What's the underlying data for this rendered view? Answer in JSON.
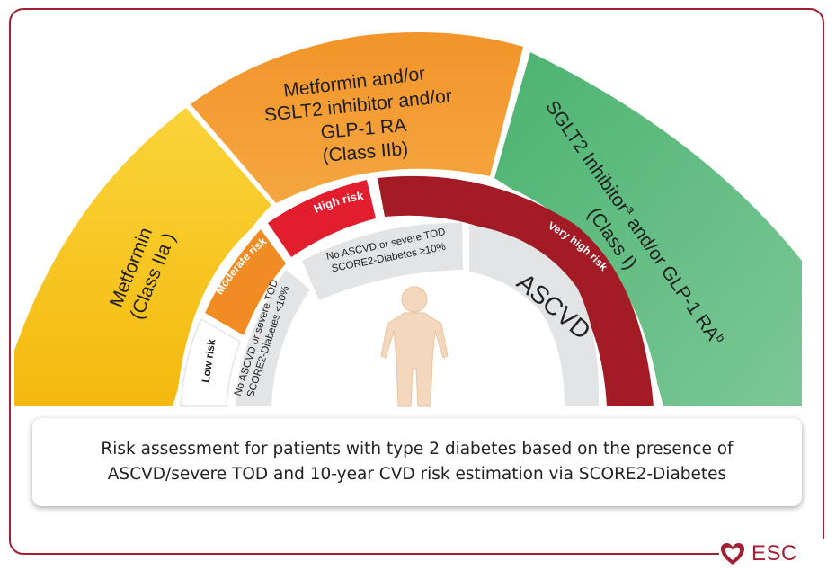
{
  "segments": {
    "class_iia": {
      "line1": "Metformin",
      "line2": "(Class IIa )",
      "color": "#f6c21c"
    },
    "class_iib": {
      "line1": "Metformin and/or",
      "line2": "SGLT2 inhibitor and/or",
      "line3": "GLP-1 RA",
      "line4": "(Class IIb)",
      "color": "#f39a2c"
    },
    "class_i": {
      "line1_main": "SGLT2 Inhibitor",
      "line1_sup": "a",
      "line1_tail": " and/or GLP-1 RA",
      "line1_sup2": "b",
      "line2": "(Class I)",
      "color": "#5fba7d"
    }
  },
  "risk_levels": {
    "low": "Low risk",
    "moderate": "Moderate risk",
    "high": "High risk",
    "very_high": "Very high risk"
  },
  "criteria": {
    "moderate_line1": "No ASCVD or severe TOD",
    "moderate_line2": "SCORE2-Diabetes <10%",
    "high_line1": "No ASCVD or severe TOD",
    "high_line2": "SCORE2-Diabetes ≥10%",
    "very_high": "ASCVD"
  },
  "caption": {
    "line1": "Risk assessment for patients with type 2 diabetes based on the presence of",
    "line2": "ASCVD/severe TOD  and  10-year CVD risk estimation via SCORE2-Diabetes"
  },
  "logo": {
    "text": "ESC"
  },
  "colors": {
    "frame": "#a31f34",
    "moderate_band": "#f08c23",
    "high_band": "#e11d2e",
    "very_high_band": "#a31b25",
    "criteria_fill": "#e3e4e6",
    "figure": "#f4d8bd"
  }
}
